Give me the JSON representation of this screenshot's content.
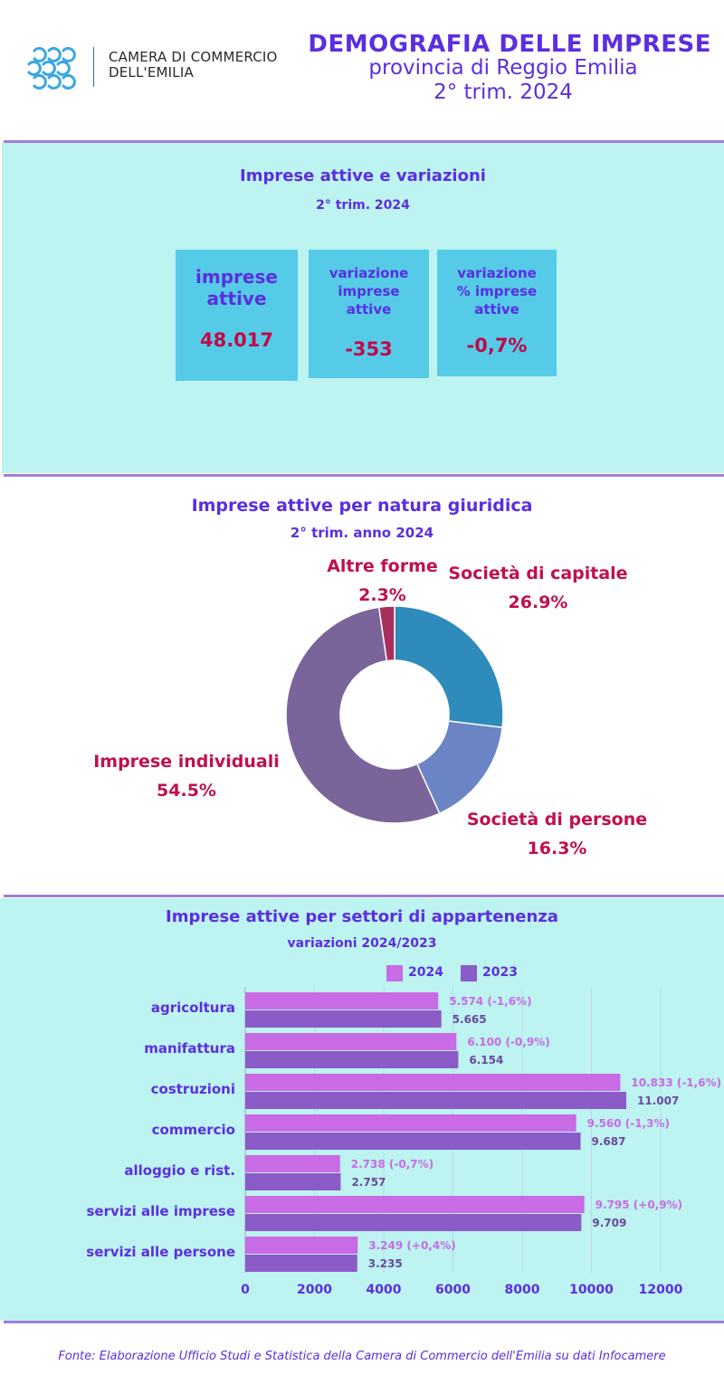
{
  "header": {
    "logo_line1": "CAMERA DI COMMERCIO",
    "logo_line2": "DELL'EMILIA",
    "title": "DEMOGRAFIA DELLE IMPRESE",
    "subtitle1": "provincia di Reggio Emilia",
    "subtitle2": "2° trim. 2024"
  },
  "section1": {
    "title": "Imprese attive e variazioni",
    "subtitle": "2° trim. 2024",
    "kpis": [
      {
        "label": "imprese attive",
        "value": "48.017"
      },
      {
        "label": "variazione imprese attive",
        "value": "-353"
      },
      {
        "label": "variazione % imprese attive",
        "value": "-0,7%"
      }
    ]
  },
  "section2": {
    "title": "Imprese attive per natura giuridica",
    "subtitle": "2° trim. anno 2024"
  },
  "section3": {
    "title": "Imprese attive per settori di appartenenza",
    "subtitle": "variazioni 2024/2023"
  },
  "colors": {
    "accent": "#5b2ee0",
    "value_red": "#c00a4a",
    "panel": "#bdf3f1",
    "kpi_box": "#55cbe8",
    "bar_2024": "#c86be4",
    "bar_2023": "#8b5bc8",
    "pie_capitale": "#2e8bbb",
    "pie_persone": "#6b84c6",
    "pie_individuali": "#7a6499",
    "pie_altre": "#a8305f"
  },
  "chart_data": [
    {
      "type": "pie",
      "title": "Imprese attive per natura giuridica",
      "subtitle": "2° trim. anno 2024",
      "donut": true,
      "slices": [
        {
          "label": "Società di capitale",
          "value": 26.9,
          "display": "26.9%"
        },
        {
          "label": "Società di persone",
          "value": 16.3,
          "display": "16.3%"
        },
        {
          "label": "Imprese individuali",
          "value": 54.5,
          "display": "54.5%"
        },
        {
          "label": "Altre forme",
          "value": 2.3,
          "display": "2.3%"
        }
      ]
    },
    {
      "type": "bar",
      "orientation": "horizontal",
      "title": "Imprese attive per settori di appartenenza",
      "subtitle": "variazioni 2024/2023",
      "categories": [
        "agricoltura",
        "manifattura",
        "costruzioni",
        "commercio",
        "alloggio e rist.",
        "servizi alle imprese",
        "servizi alle persone"
      ],
      "series": [
        {
          "name": "2024",
          "values": [
            5574,
            6100,
            10833,
            9560,
            2738,
            9795,
            3249
          ],
          "labels": [
            "5.574 (-1,6%)",
            "6.100 (-0,9%)",
            "10.833 (-1,6%)",
            "9.560 (-1,3%)",
            "2.738 (-0,7%)",
            "9.795 (+0,9%)",
            "3.249 (+0,4%)"
          ]
        },
        {
          "name": "2023",
          "values": [
            5665,
            6154,
            11007,
            9687,
            2757,
            9709,
            3235
          ],
          "labels": [
            "5.665",
            "6.154",
            "11.007",
            "9.687",
            "2.757",
            "9.709",
            "3.235"
          ]
        }
      ],
      "xlim": [
        0,
        12000
      ],
      "xticks": [
        0,
        2000,
        4000,
        6000,
        8000,
        10000,
        12000
      ],
      "grid": true,
      "legend": "top"
    }
  ],
  "footer": "Fonte: Elaborazione Ufficio Studi e Statistica della Camera di Commercio dell'Emilia su dati Infocamere"
}
